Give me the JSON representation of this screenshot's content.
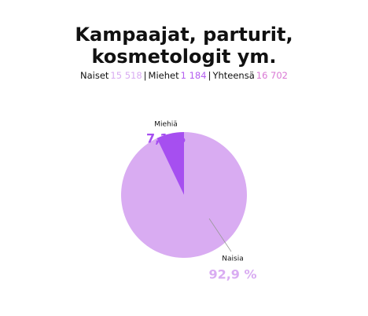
{
  "chart_data": {
    "type": "pie",
    "title": [
      "Kampaajat, parturit,",
      "kosmetologit ym."
    ],
    "totals": [
      {
        "name": "Naiset",
        "value": 15518,
        "label": "15 518",
        "color": "#d9acf2"
      },
      {
        "name": "Miehet",
        "value": 1184,
        "label": "1 184",
        "color": "#b45ef0"
      },
      {
        "name": "Yhteensä",
        "value": 16702,
        "label": "16 702",
        "color": "#d977d4"
      }
    ],
    "separator": "|",
    "categories": [
      "Naisia",
      "Miehiä"
    ],
    "values": [
      92.9,
      7.1
    ],
    "value_labels": [
      "92,9 %",
      "7,1 %"
    ],
    "colors": [
      "#d9acf2",
      "#a64ff0"
    ]
  }
}
